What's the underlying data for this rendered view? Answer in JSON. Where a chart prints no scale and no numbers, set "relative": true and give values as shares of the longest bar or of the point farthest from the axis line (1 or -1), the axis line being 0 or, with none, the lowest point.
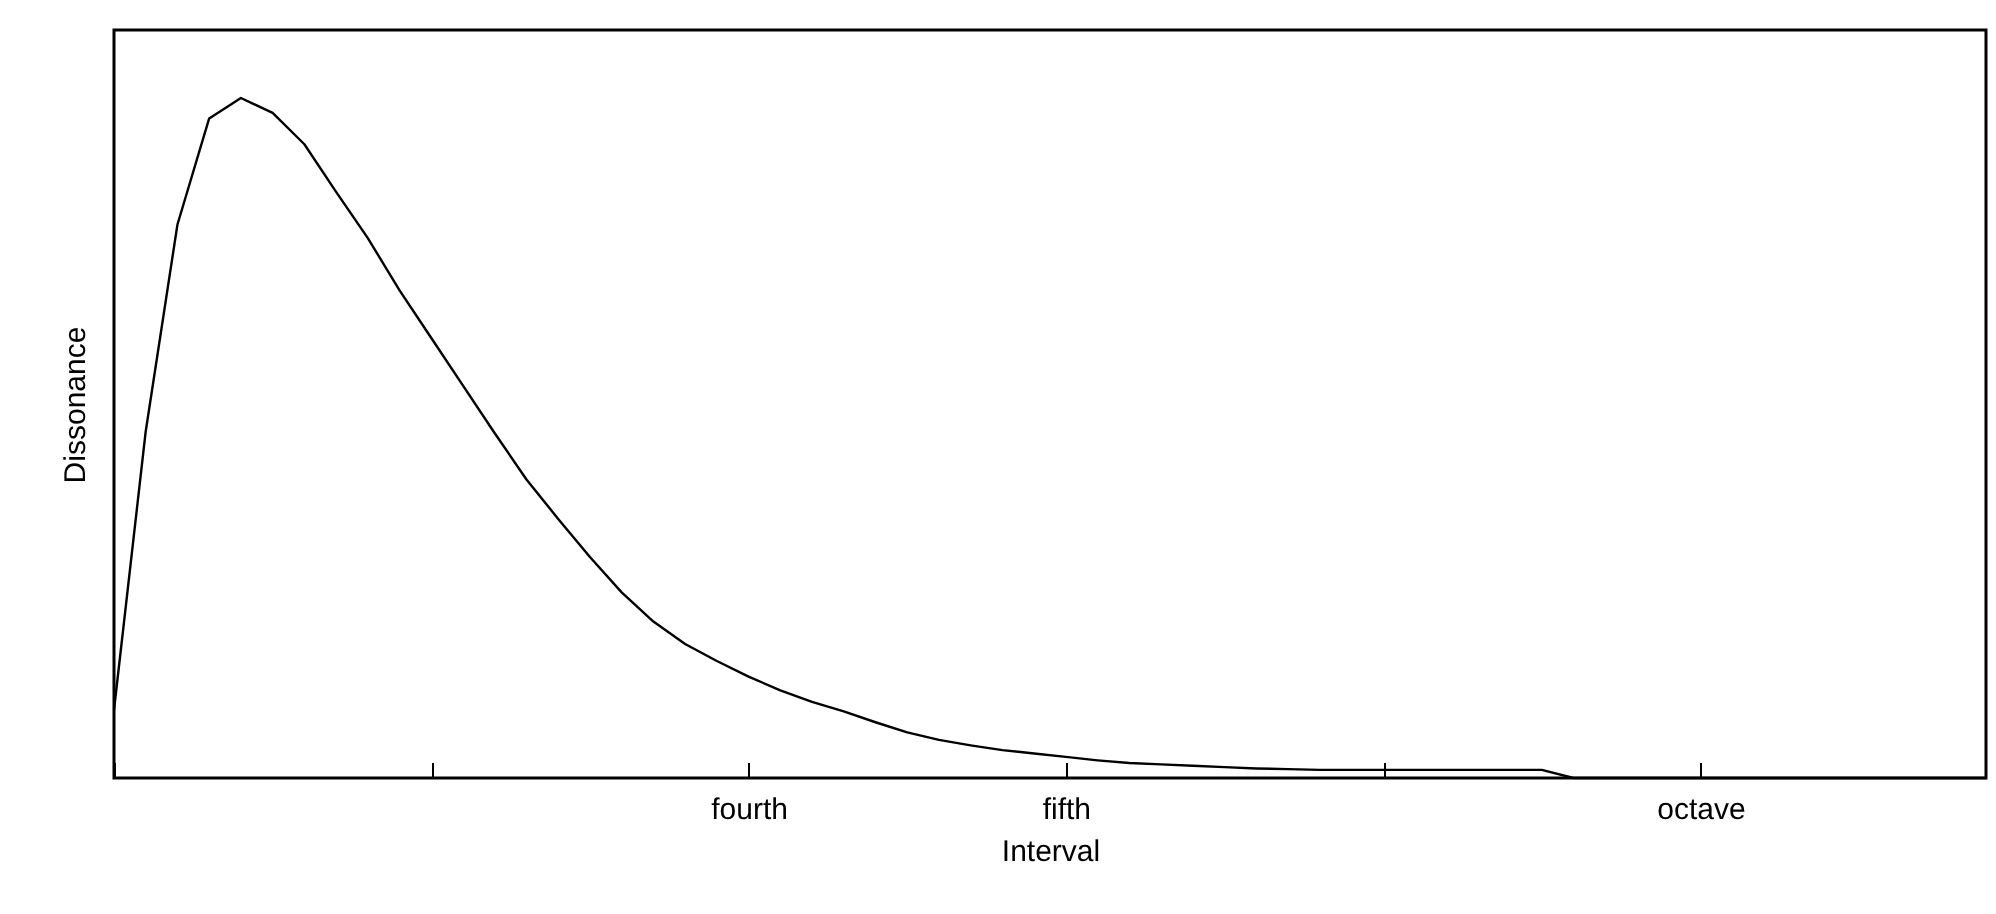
{
  "chart_data": {
    "type": "line",
    "xlabel": "Interval",
    "ylabel": "Dissonance",
    "relative": true,
    "marker": "none",
    "line_style": "solid",
    "categories": [
      null,
      null,
      null,
      null,
      null,
      null,
      null,
      null,
      null,
      null,
      null,
      null,
      null,
      null,
      null,
      null,
      null,
      null,
      null,
      null,
      "fourth",
      null,
      null,
      null,
      null,
      null,
      null,
      null,
      null,
      null,
      "fifth",
      null,
      null,
      null,
      null,
      null,
      null,
      null,
      null,
      null,
      null,
      null,
      null,
      null,
      null,
      null,
      null,
      null,
      null,
      null,
      "octave",
      null,
      null,
      null,
      null,
      null,
      null,
      null,
      null,
      null
    ],
    "series": [
      {
        "color": "#000000",
        "values": [
          0.1,
          0.51,
          0.814,
          0.97,
          1,
          0.978,
          0.932,
          0.862,
          0.794,
          0.717,
          0.647,
          0.577,
          0.507,
          0.439,
          0.381,
          0.325,
          0.273,
          0.23,
          0.197,
          0.172,
          0.149,
          0.129,
          0.112,
          0.098,
          0.082,
          0.067,
          0.056,
          0.048,
          0.041,
          0.036,
          0.031,
          0.026,
          0.022,
          0.02,
          0.018,
          0.016,
          0.014,
          0.013,
          0.012,
          0.012,
          0.012,
          0.012,
          0.012,
          0.012,
          0.012,
          0.012,
          0,
          0,
          0,
          0,
          0,
          0,
          0,
          0,
          0,
          0,
          0,
          0,
          0,
          0
        ]
      }
    ]
  }
}
